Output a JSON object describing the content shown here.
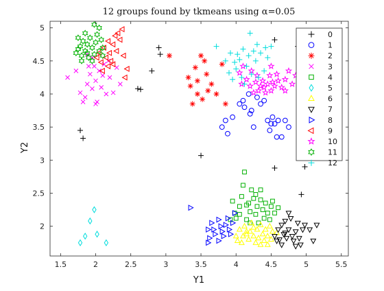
{
  "chart_data": {
    "type": "scatter",
    "title": "12 groups found by tkmeans using α=0.05",
    "xlabel": "Y1",
    "ylabel": "Y2",
    "xlim": [
      1.35,
      5.6
    ],
    "ylim": [
      1.55,
      5.1
    ],
    "xticks": [
      "1.5",
      "2",
      "2.5",
      "3",
      "3.5",
      "4",
      "4.5",
      "5",
      "5.5"
    ],
    "yticks": [
      "2",
      "2.5",
      "3",
      "3.5",
      "4",
      "4.5",
      "5"
    ],
    "legend_position": "top-right",
    "series": [
      {
        "name": "0",
        "marker": "plus",
        "color": "#000000",
        "points": [
          [
            1.78,
            3.45
          ],
          [
            1.82,
            3.33
          ],
          [
            2.6,
            4.08
          ],
          [
            2.64,
            4.07
          ],
          [
            2.8,
            4.35
          ],
          [
            2.9,
            4.7
          ],
          [
            2.92,
            4.6
          ],
          [
            3.5,
            3.07
          ],
          [
            4.55,
            4.82
          ],
          [
            4.55,
            2.88
          ],
          [
            4.88,
            4.72
          ],
          [
            4.93,
            2.48
          ],
          [
            4.98,
            2.9
          ]
        ]
      },
      {
        "name": "1",
        "marker": "circle",
        "color": "#0000ff",
        "points": [
          [
            3.8,
            3.5
          ],
          [
            3.85,
            3.6
          ],
          [
            3.88,
            3.4
          ],
          [
            3.95,
            3.65
          ],
          [
            4.05,
            3.85
          ],
          [
            4.1,
            3.9
          ],
          [
            4.12,
            3.8
          ],
          [
            4.2,
            3.7
          ],
          [
            4.25,
            3.5
          ],
          [
            4.3,
            3.95
          ],
          [
            4.35,
            3.85
          ],
          [
            4.4,
            3.9
          ],
          [
            4.45,
            3.6
          ],
          [
            4.5,
            3.55
          ],
          [
            4.52,
            3.65
          ],
          [
            4.55,
            3.55
          ],
          [
            4.58,
            3.35
          ],
          [
            4.6,
            3.6
          ],
          [
            4.65,
            3.35
          ],
          [
            4.7,
            3.6
          ],
          [
            4.75,
            3.5
          ],
          [
            4.48,
            3.45
          ],
          [
            4.18,
            4.0
          ],
          [
            4.22,
            3.75
          ]
        ]
      },
      {
        "name": "2",
        "marker": "asterisk",
        "color": "#ff0000",
        "points": [
          [
            3.05,
            4.58
          ],
          [
            3.32,
            4.25
          ],
          [
            3.35,
            4.12
          ],
          [
            3.38,
            3.85
          ],
          [
            3.42,
            4.4
          ],
          [
            3.45,
            4.2
          ],
          [
            3.5,
            4.58
          ],
          [
            3.55,
            4.5
          ],
          [
            3.52,
            3.92
          ],
          [
            3.58,
            4.3
          ],
          [
            3.65,
            4.15
          ],
          [
            3.72,
            4.0
          ],
          [
            3.8,
            4.45
          ],
          [
            3.85,
            3.85
          ],
          [
            3.6,
            4.05
          ],
          [
            3.45,
            4.0
          ]
        ]
      },
      {
        "name": "3",
        "marker": "x",
        "color": "#ff00ff",
        "points": [
          [
            1.6,
            4.25
          ],
          [
            1.72,
            4.35
          ],
          [
            1.78,
            4.02
          ],
          [
            1.82,
            3.88
          ],
          [
            1.85,
            3.95
          ],
          [
            1.88,
            4.15
          ],
          [
            1.9,
            4.42
          ],
          [
            1.92,
            4.3
          ],
          [
            1.95,
            4.55
          ],
          [
            1.98,
            4.42
          ],
          [
            2.0,
            4.2
          ],
          [
            2.02,
            3.88
          ],
          [
            2.05,
            4.35
          ],
          [
            2.08,
            4.1
          ],
          [
            2.1,
            4.28
          ],
          [
            2.12,
            4.45
          ],
          [
            2.15,
            4.0
          ],
          [
            2.18,
            4.5
          ],
          [
            2.2,
            4.25
          ],
          [
            2.25,
            4.02
          ],
          [
            2.3,
            4.4
          ],
          [
            2.35,
            4.15
          ],
          [
            1.88,
            4.6
          ],
          [
            1.95,
            4.08
          ],
          [
            2.0,
            3.85
          ]
        ]
      },
      {
        "name": "4",
        "marker": "square",
        "color": "#00b000",
        "points": [
          [
            3.95,
            2.38
          ],
          [
            3.98,
            2.2
          ],
          [
            4.0,
            2.12
          ],
          [
            4.05,
            2.3
          ],
          [
            4.08,
            2.45
          ],
          [
            4.1,
            2.62
          ],
          [
            4.12,
            2.82
          ],
          [
            4.15,
            2.1
          ],
          [
            4.18,
            2.35
          ],
          [
            4.2,
            2.22
          ],
          [
            4.22,
            2.55
          ],
          [
            4.25,
            2.42
          ],
          [
            4.28,
            2.18
          ],
          [
            4.3,
            2.3
          ],
          [
            4.32,
            2.05
          ],
          [
            4.35,
            2.4
          ],
          [
            4.38,
            2.25
          ],
          [
            4.4,
            2.12
          ],
          [
            4.42,
            2.35
          ],
          [
            4.45,
            2.2
          ],
          [
            4.48,
            2.1
          ],
          [
            4.5,
            2.3
          ],
          [
            4.52,
            2.38
          ],
          [
            4.55,
            2.2
          ],
          [
            4.6,
            2.28
          ],
          [
            4.05,
            2.18
          ],
          [
            4.2,
            2.05
          ],
          [
            4.35,
            2.55
          ],
          [
            3.92,
            2.1
          ],
          [
            4.15,
            2.32
          ],
          [
            4.28,
            2.48
          ]
        ]
      },
      {
        "name": "5",
        "marker": "diamond",
        "color": "#00dddd",
        "points": [
          [
            1.78,
            1.75
          ],
          [
            1.85,
            1.85
          ],
          [
            1.92,
            2.08
          ],
          [
            1.98,
            2.25
          ],
          [
            2.02,
            1.88
          ],
          [
            2.15,
            1.75
          ]
        ]
      },
      {
        "name": "6",
        "marker": "triangle-up",
        "color": "#ffff00",
        "points": [
          [
            4.0,
            1.85
          ],
          [
            4.05,
            1.95
          ],
          [
            4.08,
            1.75
          ],
          [
            4.12,
            2.0
          ],
          [
            4.15,
            1.88
          ],
          [
            4.18,
            1.8
          ],
          [
            4.2,
            1.92
          ],
          [
            4.22,
            2.05
          ],
          [
            4.25,
            1.85
          ],
          [
            4.28,
            1.75
          ],
          [
            4.3,
            1.95
          ],
          [
            4.32,
            1.82
          ],
          [
            4.35,
            2.02
          ],
          [
            4.38,
            1.88
          ],
          [
            4.4,
            1.78
          ],
          [
            4.42,
            1.95
          ],
          [
            4.45,
            1.85
          ],
          [
            4.48,
            2.0
          ],
          [
            4.5,
            1.8
          ],
          [
            4.52,
            1.92
          ],
          [
            4.1,
            1.85
          ],
          [
            4.35,
            1.72
          ],
          [
            4.02,
            1.78
          ],
          [
            4.25,
            1.98
          ],
          [
            4.45,
            1.72
          ],
          [
            4.15,
            1.92
          ],
          [
            4.58,
            1.9
          ]
        ]
      },
      {
        "name": "7",
        "marker": "triangle-down",
        "color": "#000000",
        "points": [
          [
            4.55,
            1.85
          ],
          [
            4.6,
            1.95
          ],
          [
            4.62,
            1.8
          ],
          [
            4.65,
            2.02
          ],
          [
            4.68,
            1.88
          ],
          [
            4.7,
            2.08
          ],
          [
            4.72,
            1.82
          ],
          [
            4.75,
            1.95
          ],
          [
            4.78,
            2.12
          ],
          [
            4.8,
            1.85
          ],
          [
            4.82,
            1.78
          ],
          [
            4.85,
            1.92
          ],
          [
            4.88,
            2.05
          ],
          [
            4.9,
            1.82
          ],
          [
            4.92,
            1.72
          ],
          [
            4.95,
            1.95
          ],
          [
            4.98,
            2.02
          ],
          [
            5.05,
            1.95
          ],
          [
            5.1,
            1.78
          ],
          [
            5.15,
            2.02
          ],
          [
            4.65,
            1.72
          ],
          [
            4.75,
            2.2
          ],
          [
            4.85,
            1.7
          ],
          [
            4.58,
            1.78
          ],
          [
            4.7,
            1.9
          ]
        ]
      },
      {
        "name": "8",
        "marker": "triangle-right",
        "color": "#0000ff",
        "points": [
          [
            3.35,
            2.28
          ],
          [
            3.6,
            1.95
          ],
          [
            3.62,
            1.82
          ],
          [
            3.65,
            2.05
          ],
          [
            3.68,
            1.95
          ],
          [
            3.7,
            1.88
          ],
          [
            3.75,
            2.1
          ],
          [
            3.78,
            2.0
          ],
          [
            3.8,
            1.92
          ],
          [
            3.82,
            1.85
          ],
          [
            3.85,
            2.02
          ],
          [
            3.88,
            2.12
          ],
          [
            3.9,
            1.95
          ],
          [
            3.92,
            1.88
          ],
          [
            3.95,
            2.05
          ],
          [
            3.98,
            2.2
          ],
          [
            3.6,
            1.75
          ],
          [
            3.75,
            1.78
          ]
        ]
      },
      {
        "name": "9",
        "marker": "triangle-left",
        "color": "#ff0000",
        "points": [
          [
            2.02,
            4.55
          ],
          [
            2.05,
            4.62
          ],
          [
            2.08,
            4.48
          ],
          [
            2.12,
            4.7
          ],
          [
            2.15,
            4.55
          ],
          [
            2.18,
            4.42
          ],
          [
            2.2,
            4.62
          ],
          [
            2.22,
            4.5
          ],
          [
            2.25,
            4.75
          ],
          [
            2.28,
            4.88
          ],
          [
            2.3,
            4.65
          ],
          [
            2.32,
            4.92
          ],
          [
            2.35,
            4.82
          ],
          [
            2.38,
            4.98
          ],
          [
            2.4,
            4.58
          ],
          [
            2.42,
            4.25
          ],
          [
            2.45,
            4.38
          ],
          [
            2.1,
            4.35
          ],
          [
            2.25,
            4.45
          ],
          [
            2.18,
            4.8
          ]
        ]
      },
      {
        "name": "10",
        "marker": "star",
        "color": "#ff00ff",
        "points": [
          [
            4.05,
            4.32
          ],
          [
            4.08,
            4.15
          ],
          [
            4.1,
            4.42
          ],
          [
            4.15,
            4.22
          ],
          [
            4.2,
            4.12
          ],
          [
            4.22,
            4.35
          ],
          [
            4.25,
            4.02
          ],
          [
            4.28,
            4.18
          ],
          [
            4.3,
            4.28
          ],
          [
            4.32,
            4.05
          ],
          [
            4.35,
            4.12
          ],
          [
            4.38,
            4.2
          ],
          [
            4.4,
            4.1
          ],
          [
            4.42,
            4.02
          ],
          [
            4.45,
            4.15
          ],
          [
            4.48,
            4.28
          ],
          [
            4.5,
            4.05
          ],
          [
            4.52,
            4.18
          ],
          [
            4.55,
            4.12
          ],
          [
            4.58,
            4.3
          ],
          [
            4.6,
            4.2
          ],
          [
            4.65,
            4.1
          ],
          [
            4.7,
            4.22
          ],
          [
            4.75,
            4.35
          ],
          [
            4.8,
            4.15
          ],
          [
            4.85,
            4.28
          ],
          [
            4.9,
            4.05
          ],
          [
            4.92,
            4.38
          ],
          [
            4.95,
            4.12
          ],
          [
            5.0,
            4.25
          ],
          [
            5.05,
            4.1
          ],
          [
            5.1,
            4.2
          ],
          [
            4.5,
            4.42
          ],
          [
            4.7,
            4.05
          ]
        ]
      },
      {
        "name": "11",
        "marker": "hexagram",
        "color": "#00b000",
        "points": [
          [
            1.72,
            4.62
          ],
          [
            1.75,
            4.68
          ],
          [
            1.78,
            4.72
          ],
          [
            1.8,
            4.58
          ],
          [
            1.82,
            4.8
          ],
          [
            1.85,
            4.65
          ],
          [
            1.88,
            4.75
          ],
          [
            1.9,
            4.55
          ],
          [
            1.92,
            4.85
          ],
          [
            1.95,
            4.7
          ],
          [
            1.98,
            4.6
          ],
          [
            2.0,
            4.78
          ],
          [
            2.02,
            4.9
          ],
          [
            2.05,
            4.65
          ],
          [
            2.08,
            4.82
          ],
          [
            2.1,
            4.7
          ],
          [
            1.75,
            4.85
          ],
          [
            1.85,
            4.92
          ],
          [
            1.98,
            5.05
          ],
          [
            2.05,
            5.0
          ],
          [
            1.88,
            4.62
          ],
          [
            1.95,
            4.5
          ],
          [
            2.1,
            4.58
          ],
          [
            1.8,
            4.5
          ]
        ]
      },
      {
        "name": "12",
        "marker": "plus",
        "color": "#00dddd",
        "points": [
          [
            3.72,
            4.72
          ],
          [
            3.85,
            4.5
          ],
          [
            3.9,
            4.32
          ],
          [
            3.92,
            4.62
          ],
          [
            3.95,
            4.22
          ],
          [
            3.98,
            4.48
          ],
          [
            4.0,
            4.38
          ],
          [
            4.02,
            4.6
          ],
          [
            4.05,
            4.52
          ],
          [
            4.08,
            4.25
          ],
          [
            4.1,
            4.68
          ],
          [
            4.12,
            4.15
          ],
          [
            4.15,
            4.42
          ],
          [
            4.18,
            4.58
          ],
          [
            4.2,
            4.92
          ],
          [
            4.22,
            4.3
          ],
          [
            4.25,
            4.65
          ],
          [
            4.28,
            4.5
          ],
          [
            4.3,
            4.75
          ],
          [
            4.32,
            4.25
          ],
          [
            4.35,
            4.62
          ],
          [
            4.4,
            4.35
          ],
          [
            4.42,
            4.7
          ],
          [
            4.45,
            4.55
          ],
          [
            4.5,
            4.72
          ]
        ]
      }
    ]
  }
}
